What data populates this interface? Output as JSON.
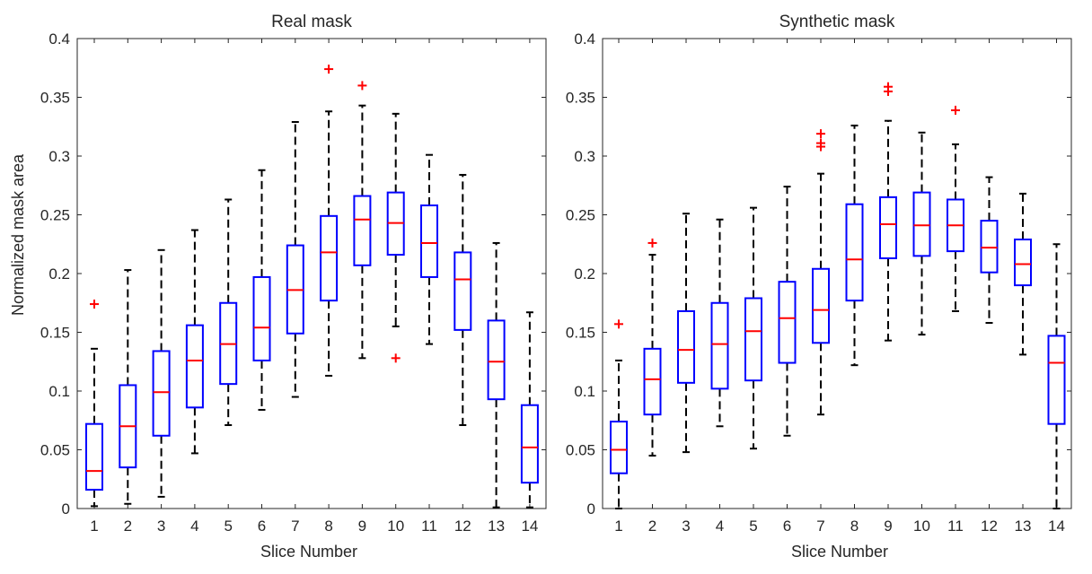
{
  "chart_data": [
    {
      "type": "boxplot",
      "title": "Real mask",
      "xlabel": "Slice Number",
      "ylabel": "Normalized mask area",
      "ylim": [
        0,
        0.4
      ],
      "yticks": [
        0,
        0.05,
        0.1,
        0.15,
        0.2,
        0.25,
        0.3,
        0.35,
        0.4
      ],
      "ytick_labels": [
        "0",
        "0.05",
        "0.1",
        "0.15",
        "0.2",
        "0.25",
        "0.3",
        "0.35",
        "0.4"
      ],
      "categories": [
        "1",
        "2",
        "3",
        "4",
        "5",
        "6",
        "7",
        "8",
        "9",
        "10",
        "11",
        "12",
        "13",
        "14"
      ],
      "boxes": [
        {
          "whisker_low": 0.002,
          "q1": 0.016,
          "median": 0.032,
          "q3": 0.072,
          "whisker_high": 0.136,
          "outliers": [
            0.174
          ]
        },
        {
          "whisker_low": 0.004,
          "q1": 0.035,
          "median": 0.07,
          "q3": 0.105,
          "whisker_high": 0.203,
          "outliers": []
        },
        {
          "whisker_low": 0.01,
          "q1": 0.062,
          "median": 0.099,
          "q3": 0.134,
          "whisker_high": 0.22,
          "outliers": []
        },
        {
          "whisker_low": 0.047,
          "q1": 0.086,
          "median": 0.126,
          "q3": 0.156,
          "whisker_high": 0.237,
          "outliers": []
        },
        {
          "whisker_low": 0.071,
          "q1": 0.106,
          "median": 0.14,
          "q3": 0.175,
          "whisker_high": 0.263,
          "outliers": []
        },
        {
          "whisker_low": 0.084,
          "q1": 0.126,
          "median": 0.154,
          "q3": 0.197,
          "whisker_high": 0.288,
          "outliers": []
        },
        {
          "whisker_low": 0.095,
          "q1": 0.149,
          "median": 0.186,
          "q3": 0.224,
          "whisker_high": 0.329,
          "outliers": []
        },
        {
          "whisker_low": 0.113,
          "q1": 0.177,
          "median": 0.218,
          "q3": 0.249,
          "whisker_high": 0.338,
          "outliers": [
            0.374
          ]
        },
        {
          "whisker_low": 0.128,
          "q1": 0.207,
          "median": 0.246,
          "q3": 0.266,
          "whisker_high": 0.343,
          "outliers": [
            0.36
          ]
        },
        {
          "whisker_low": 0.155,
          "q1": 0.216,
          "median": 0.243,
          "q3": 0.269,
          "whisker_high": 0.336,
          "outliers": [
            0.128
          ]
        },
        {
          "whisker_low": 0.14,
          "q1": 0.197,
          "median": 0.226,
          "q3": 0.258,
          "whisker_high": 0.301,
          "outliers": []
        },
        {
          "whisker_low": 0.071,
          "q1": 0.152,
          "median": 0.195,
          "q3": 0.218,
          "whisker_high": 0.284,
          "outliers": []
        },
        {
          "whisker_low": 0.001,
          "q1": 0.093,
          "median": 0.125,
          "q3": 0.16,
          "whisker_high": 0.226,
          "outliers": []
        },
        {
          "whisker_low": 0.001,
          "q1": 0.022,
          "median": 0.052,
          "q3": 0.088,
          "whisker_high": 0.167,
          "outliers": []
        }
      ]
    },
    {
      "type": "boxplot",
      "title": "Synthetic mask",
      "xlabel": "Slice Number",
      "ylabel": "",
      "ylim": [
        0,
        0.4
      ],
      "yticks": [
        0,
        0.05,
        0.1,
        0.15,
        0.2,
        0.25,
        0.3,
        0.35,
        0.4
      ],
      "ytick_labels": [
        "0",
        "0.05",
        "0.1",
        "0.15",
        "0.2",
        "0.25",
        "0.3",
        "0.35",
        "0.4"
      ],
      "categories": [
        "1",
        "2",
        "3",
        "4",
        "5",
        "6",
        "7",
        "8",
        "9",
        "10",
        "11",
        "12",
        "13",
        "14"
      ],
      "boxes": [
        {
          "whisker_low": 0.0,
          "q1": 0.03,
          "median": 0.05,
          "q3": 0.074,
          "whisker_high": 0.126,
          "outliers": [
            0.157
          ]
        },
        {
          "whisker_low": 0.045,
          "q1": 0.08,
          "median": 0.11,
          "q3": 0.136,
          "whisker_high": 0.216,
          "outliers": [
            0.226
          ]
        },
        {
          "whisker_low": 0.048,
          "q1": 0.107,
          "median": 0.135,
          "q3": 0.168,
          "whisker_high": 0.251,
          "outliers": []
        },
        {
          "whisker_low": 0.07,
          "q1": 0.102,
          "median": 0.14,
          "q3": 0.175,
          "whisker_high": 0.246,
          "outliers": []
        },
        {
          "whisker_low": 0.051,
          "q1": 0.109,
          "median": 0.151,
          "q3": 0.179,
          "whisker_high": 0.256,
          "outliers": []
        },
        {
          "whisker_low": 0.062,
          "q1": 0.124,
          "median": 0.162,
          "q3": 0.193,
          "whisker_high": 0.274,
          "outliers": []
        },
        {
          "whisker_low": 0.08,
          "q1": 0.141,
          "median": 0.169,
          "q3": 0.204,
          "whisker_high": 0.285,
          "outliers": [
            0.308,
            0.311,
            0.319
          ]
        },
        {
          "whisker_low": 0.122,
          "q1": 0.177,
          "median": 0.212,
          "q3": 0.259,
          "whisker_high": 0.326,
          "outliers": []
        },
        {
          "whisker_low": 0.143,
          "q1": 0.213,
          "median": 0.242,
          "q3": 0.265,
          "whisker_high": 0.33,
          "outliers": [
            0.355,
            0.359
          ]
        },
        {
          "whisker_low": 0.148,
          "q1": 0.215,
          "median": 0.241,
          "q3": 0.269,
          "whisker_high": 0.32,
          "outliers": []
        },
        {
          "whisker_low": 0.168,
          "q1": 0.219,
          "median": 0.241,
          "q3": 0.263,
          "whisker_high": 0.31,
          "outliers": [
            0.339
          ]
        },
        {
          "whisker_low": 0.158,
          "q1": 0.201,
          "median": 0.222,
          "q3": 0.245,
          "whisker_high": 0.282,
          "outliers": []
        },
        {
          "whisker_low": 0.131,
          "q1": 0.19,
          "median": 0.208,
          "q3": 0.229,
          "whisker_high": 0.268,
          "outliers": []
        },
        {
          "whisker_low": 0.0,
          "q1": 0.072,
          "median": 0.124,
          "q3": 0.147,
          "whisker_high": 0.225,
          "outliers": []
        }
      ]
    }
  ],
  "colors": {
    "box": "#0000ff",
    "median": "#ff0000",
    "whisker": "#000000",
    "outlier": "#ff0000",
    "axis": "#262626"
  }
}
